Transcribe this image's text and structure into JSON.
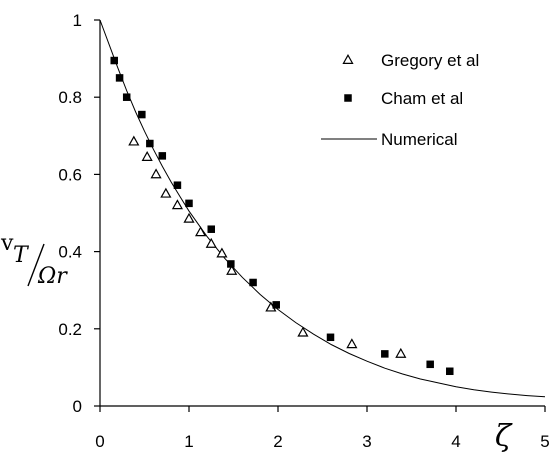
{
  "chart_data": {
    "type": "scatter",
    "xlim": [
      0,
      5
    ],
    "ylim": [
      0,
      1
    ],
    "x_ticks": [
      {
        "value": 0,
        "label": "0"
      },
      {
        "value": 1,
        "label": "1"
      },
      {
        "value": 2,
        "label": "2"
      },
      {
        "value": 3,
        "label": "3"
      },
      {
        "value": 4,
        "label": "4"
      },
      {
        "value": 5,
        "label": "5"
      }
    ],
    "y_ticks": [
      {
        "value": 0,
        "label": "0"
      },
      {
        "value": 0.2,
        "label": "0.2"
      },
      {
        "value": 0.4,
        "label": "0.4"
      },
      {
        "value": 0.6,
        "label": "0.6"
      },
      {
        "value": 0.8,
        "label": "0.8"
      },
      {
        "value": 1,
        "label": "1"
      }
    ],
    "xlabel": "ζ",
    "ylabel": {
      "numerator": "v",
      "numerator_subscript": "T",
      "denominator": "Ωr"
    },
    "grid": false,
    "legend_position": "top-right",
    "series": [
      {
        "name": "Gregory et al",
        "marker": "open-triangle",
        "color": "#000000",
        "x": [
          0.38,
          0.53,
          0.63,
          0.74,
          0.87,
          1.0,
          1.13,
          1.25,
          1.37,
          1.48,
          1.92,
          2.28,
          2.83,
          3.38
        ],
        "y": [
          0.685,
          0.645,
          0.6,
          0.55,
          0.52,
          0.485,
          0.45,
          0.42,
          0.395,
          0.35,
          0.255,
          0.19,
          0.16,
          0.135
        ]
      },
      {
        "name": "Cham et al",
        "marker": "filled-square",
        "color": "#000000",
        "x": [
          0.16,
          0.22,
          0.3,
          0.47,
          0.56,
          0.7,
          0.87,
          1.0,
          1.25,
          1.47,
          1.72,
          1.98,
          2.59,
          3.2,
          3.71,
          3.93
        ],
        "y": [
          0.895,
          0.85,
          0.8,
          0.755,
          0.68,
          0.648,
          0.572,
          0.525,
          0.458,
          0.368,
          0.32,
          0.262,
          0.178,
          0.135,
          0.108,
          0.09
        ]
      },
      {
        "name": "Numerical",
        "marker": "line",
        "color": "#000000",
        "x": [
          0,
          0.1,
          0.2,
          0.3,
          0.4,
          0.5,
          0.6,
          0.7,
          0.8,
          0.9,
          1.0,
          1.2,
          1.4,
          1.6,
          1.8,
          2.0,
          2.2,
          2.4,
          2.6,
          2.8,
          3.0,
          3.2,
          3.4,
          3.6,
          3.8,
          4.0,
          4.2,
          4.4,
          4.6,
          4.8,
          5.0
        ],
        "y": [
          1.0,
          0.938,
          0.876,
          0.817,
          0.762,
          0.712,
          0.665,
          0.621,
          0.58,
          0.542,
          0.505,
          0.44,
          0.383,
          0.333,
          0.289,
          0.25,
          0.216,
          0.186,
          0.159,
          0.136,
          0.116,
          0.098,
          0.083,
          0.07,
          0.06,
          0.05,
          0.042,
          0.036,
          0.031,
          0.027,
          0.024
        ]
      }
    ]
  }
}
